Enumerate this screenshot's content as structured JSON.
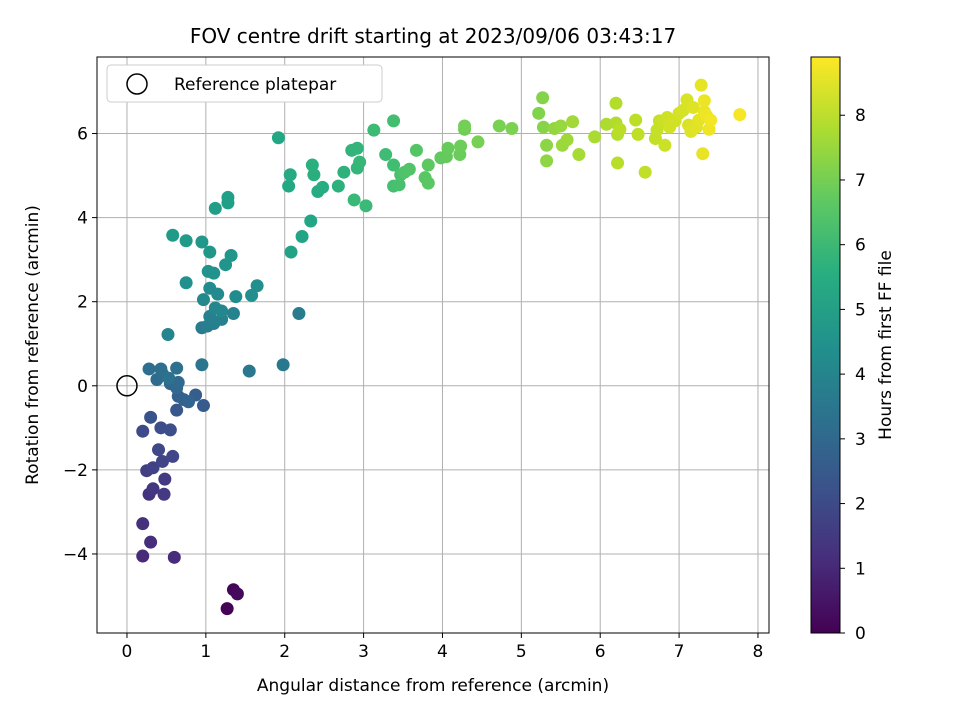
{
  "chart_data": {
    "type": "scatter",
    "title": "FOV centre drift starting at 2023/09/06 03:43:17",
    "xlabel": "Angular distance from reference (arcmin)",
    "ylabel": "Rotation from reference (arcmin)",
    "xlim": [
      -0.38,
      8.14
    ],
    "ylim": [
      -5.88,
      7.82
    ],
    "xticks": [
      0,
      1,
      2,
      3,
      4,
      5,
      6,
      7,
      8
    ],
    "yticks": [
      -4,
      -2,
      0,
      2,
      4,
      6
    ],
    "grid": true,
    "legend": {
      "position": "top-left",
      "entries": [
        "Reference platepar"
      ]
    },
    "reference_point": {
      "x": 0,
      "y": 0
    },
    "colorbar": {
      "label": "Hours from first FF file",
      "range": [
        0,
        8.9
      ],
      "ticks": [
        0,
        1,
        2,
        3,
        4,
        5,
        6,
        7,
        8
      ],
      "colormap": "viridis"
    },
    "points": [
      [
        1.27,
        -5.3,
        0.05
      ],
      [
        1.35,
        -4.85,
        0.12
      ],
      [
        1.4,
        -4.95,
        0.2
      ],
      [
        0.2,
        -4.05,
        1.05
      ],
      [
        0.6,
        -4.08,
        1.12
      ],
      [
        0.3,
        -3.72,
        1.18
      ],
      [
        0.2,
        -3.28,
        1.25
      ],
      [
        0.28,
        -2.58,
        1.35
      ],
      [
        0.33,
        -2.45,
        1.42
      ],
      [
        0.47,
        -2.58,
        1.5
      ],
      [
        0.48,
        -2.22,
        1.55
      ],
      [
        0.25,
        -2.02,
        1.62
      ],
      [
        0.33,
        -1.95,
        1.7
      ],
      [
        0.45,
        -1.8,
        1.78
      ],
      [
        0.58,
        -1.68,
        1.85
      ],
      [
        0.4,
        -1.52,
        1.92
      ],
      [
        0.2,
        -1.08,
        2.0
      ],
      [
        0.43,
        -1.0,
        2.08
      ],
      [
        0.55,
        -1.05,
        2.15
      ],
      [
        0.3,
        -0.75,
        2.25
      ],
      [
        0.63,
        -0.58,
        2.45
      ],
      [
        0.97,
        -0.47,
        2.55
      ],
      [
        0.87,
        -0.22,
        2.65
      ],
      [
        0.65,
        -0.25,
        2.72
      ],
      [
        0.72,
        -0.33,
        2.8
      ],
      [
        0.78,
        -0.38,
        2.88
      ],
      [
        0.55,
        0.05,
        2.95
      ],
      [
        0.63,
        -0.05,
        3.0
      ],
      [
        0.65,
        0.08,
        3.05
      ],
      [
        0.38,
        0.15,
        3.1
      ],
      [
        0.45,
        0.28,
        3.15
      ],
      [
        0.28,
        0.4,
        3.2
      ],
      [
        0.43,
        0.4,
        3.25
      ],
      [
        0.63,
        0.42,
        3.3
      ],
      [
        0.53,
        0.18,
        3.35
      ],
      [
        0.95,
        0.5,
        3.5
      ],
      [
        1.55,
        0.35,
        3.55
      ],
      [
        1.98,
        0.5,
        3.6
      ],
      [
        2.18,
        1.72,
        3.65
      ],
      [
        0.95,
        1.38,
        3.7
      ],
      [
        1.02,
        1.42,
        3.75
      ],
      [
        1.1,
        1.48,
        3.8
      ],
      [
        1.2,
        1.58,
        3.85
      ],
      [
        1.05,
        1.65,
        3.9
      ],
      [
        1.35,
        1.72,
        3.95
      ],
      [
        0.52,
        1.22,
        4.0
      ],
      [
        1.12,
        1.85,
        4.05
      ],
      [
        1.2,
        1.78,
        4.1
      ],
      [
        0.97,
        2.05,
        4.15
      ],
      [
        1.05,
        2.32,
        4.2
      ],
      [
        1.15,
        2.18,
        4.25
      ],
      [
        1.38,
        2.12,
        4.3
      ],
      [
        1.58,
        2.15,
        4.35
      ],
      [
        1.65,
        2.38,
        4.4
      ],
      [
        0.75,
        2.45,
        4.45
      ],
      [
        1.03,
        2.72,
        4.5
      ],
      [
        1.1,
        2.68,
        4.55
      ],
      [
        1.25,
        2.88,
        4.6
      ],
      [
        1.32,
        3.1,
        4.65
      ],
      [
        1.05,
        3.18,
        4.7
      ],
      [
        0.95,
        3.42,
        4.75
      ],
      [
        0.75,
        3.45,
        4.8
      ],
      [
        0.58,
        3.58,
        4.85
      ],
      [
        1.12,
        4.22,
        4.95
      ],
      [
        1.28,
        4.35,
        5.0
      ],
      [
        1.28,
        4.48,
        5.05
      ],
      [
        2.08,
        3.18,
        5.15
      ],
      [
        2.22,
        3.55,
        5.2
      ],
      [
        2.33,
        3.92,
        5.25
      ],
      [
        1.92,
        5.9,
        5.3
      ],
      [
        2.05,
        4.75,
        5.35
      ],
      [
        2.07,
        5.02,
        5.4
      ],
      [
        2.42,
        4.62,
        5.45
      ],
      [
        2.48,
        4.72,
        5.5
      ],
      [
        2.37,
        5.02,
        5.55
      ],
      [
        2.35,
        5.25,
        5.6
      ],
      [
        2.68,
        4.75,
        5.65
      ],
      [
        2.75,
        5.08,
        5.7
      ],
      [
        2.85,
        5.6,
        5.75
      ],
      [
        2.92,
        5.65,
        5.8
      ],
      [
        2.92,
        5.18,
        5.85
      ],
      [
        2.95,
        5.32,
        5.9
      ],
      [
        2.88,
        4.42,
        5.95
      ],
      [
        3.03,
        4.28,
        6.0
      ],
      [
        3.13,
        6.08,
        6.05
      ],
      [
        3.28,
        5.5,
        6.1
      ],
      [
        3.38,
        5.25,
        6.15
      ],
      [
        3.38,
        6.3,
        6.2
      ],
      [
        3.38,
        4.75,
        6.25
      ],
      [
        3.45,
        4.78,
        6.3
      ],
      [
        3.47,
        5.02,
        6.35
      ],
      [
        3.52,
        5.08,
        6.4
      ],
      [
        3.58,
        5.15,
        6.45
      ],
      [
        3.67,
        5.6,
        6.5
      ],
      [
        3.78,
        4.95,
        6.55
      ],
      [
        3.82,
        4.82,
        6.6
      ],
      [
        3.82,
        5.25,
        6.65
      ],
      [
        3.98,
        5.42,
        6.7
      ],
      [
        4.05,
        5.45,
        6.75
      ],
      [
        4.07,
        5.65,
        6.8
      ],
      [
        4.22,
        5.5,
        6.85
      ],
      [
        4.23,
        5.7,
        6.9
      ],
      [
        4.28,
        6.1,
        6.95
      ],
      [
        4.28,
        6.18,
        7.0
      ],
      [
        4.45,
        5.8,
        7.05
      ],
      [
        4.72,
        6.18,
        7.1
      ],
      [
        4.88,
        6.12,
        7.15
      ],
      [
        5.22,
        6.48,
        7.2
      ],
      [
        5.27,
        6.85,
        7.25
      ],
      [
        5.28,
        6.15,
        7.3
      ],
      [
        5.32,
        5.72,
        7.35
      ],
      [
        5.32,
        5.35,
        7.4
      ],
      [
        5.42,
        6.12,
        7.45
      ],
      [
        5.5,
        6.18,
        7.5
      ],
      [
        5.52,
        5.72,
        7.55
      ],
      [
        5.58,
        5.85,
        7.6
      ],
      [
        5.65,
        6.28,
        7.65
      ],
      [
        5.73,
        5.5,
        7.7
      ],
      [
        5.93,
        5.92,
        7.75
      ],
      [
        6.08,
        6.22,
        7.8
      ],
      [
        6.2,
        6.25,
        7.85
      ],
      [
        6.2,
        6.72,
        7.88
      ],
      [
        6.22,
        5.98,
        7.91
      ],
      [
        6.22,
        5.3,
        7.94
      ],
      [
        6.25,
        6.1,
        7.97
      ],
      [
        6.45,
        6.32,
        8.0
      ],
      [
        6.48,
        5.98,
        8.03
      ],
      [
        6.57,
        5.08,
        8.06
      ],
      [
        6.7,
        5.88,
        8.09
      ],
      [
        6.72,
        6.08,
        8.12
      ],
      [
        6.75,
        6.3,
        8.15
      ],
      [
        6.8,
        6.28,
        8.18
      ],
      [
        6.82,
        5.72,
        8.21
      ],
      [
        6.85,
        6.38,
        8.24
      ],
      [
        6.88,
        6.15,
        8.27
      ],
      [
        6.95,
        6.3,
        8.3
      ],
      [
        7.0,
        6.48,
        8.33
      ],
      [
        7.05,
        6.55,
        8.36
      ],
      [
        7.1,
        6.8,
        8.39
      ],
      [
        7.12,
        6.2,
        8.42
      ],
      [
        7.15,
        6.05,
        8.45
      ],
      [
        7.18,
        6.62,
        8.48
      ],
      [
        7.22,
        6.15,
        8.51
      ],
      [
        7.25,
        6.32,
        8.54
      ],
      [
        7.28,
        7.15,
        8.57
      ],
      [
        7.3,
        5.52,
        8.6
      ],
      [
        7.32,
        6.52,
        8.63
      ],
      [
        7.32,
        6.78,
        8.66
      ],
      [
        7.35,
        6.42,
        8.69
      ],
      [
        7.38,
        6.1,
        8.72
      ],
      [
        7.4,
        6.32,
        8.75
      ],
      [
        7.77,
        6.45,
        8.8
      ]
    ]
  }
}
